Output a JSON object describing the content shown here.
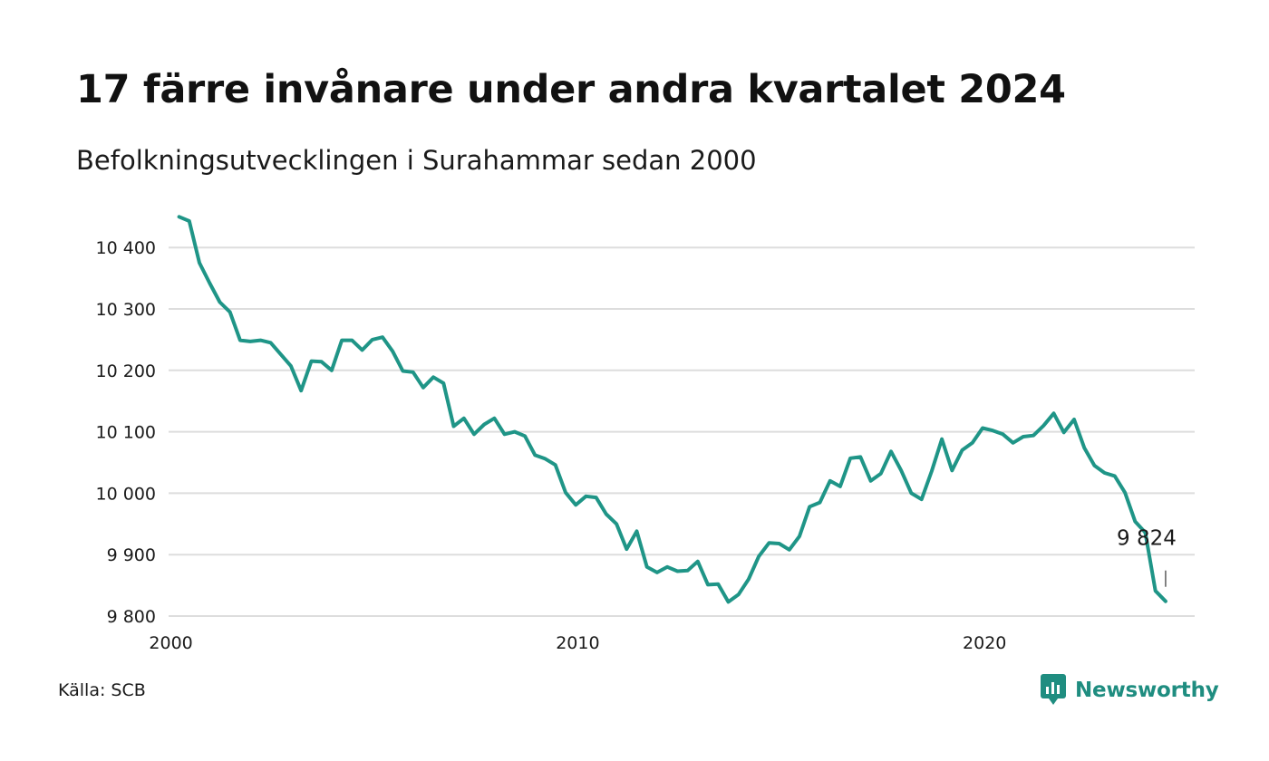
{
  "title": "17 färre invånare under andra kvartalet 2024",
  "subtitle": "Befolkningsutvecklingen i Surahammar sedan 2000",
  "source": "Källa: SCB",
  "brand": "Newsworthy",
  "colors": {
    "line": "#1f9587",
    "grid": "#dddddd",
    "brand": "#1f8d80"
  },
  "chart_data": {
    "type": "line",
    "x_start": "2000 Q1",
    "x_ticks": [
      "2000",
      "2010",
      "2020"
    ],
    "y_ticks": [
      "9 800",
      "9 900",
      "10 000",
      "10 100",
      "10 200",
      "10 300",
      "10 400"
    ],
    "ylim": [
      9800,
      10450
    ],
    "grid": "horizontal",
    "end_label": "9 824",
    "series": [
      {
        "values": [
          10450,
          10443,
          10375,
          10342,
          10311,
          10295,
          10249,
          10247,
          10249,
          10245,
          10226,
          10207,
          10167,
          10215,
          10214,
          10200,
          10249,
          10249,
          10233,
          10250,
          10254,
          10231,
          10199,
          10197,
          10172,
          10189,
          10179,
          10109,
          10122,
          10096,
          10112,
          10122,
          10096,
          10100,
          10093,
          10062,
          10056,
          10046,
          10001,
          9981,
          9995,
          9993,
          9966,
          9950,
          9909,
          9938,
          9880,
          9871,
          9880,
          9873,
          9874,
          9889,
          9851,
          9852,
          9823,
          9835,
          9860,
          9897,
          9919,
          9918,
          9908,
          9930,
          9978,
          9985,
          10020,
          10011,
          10057,
          10059,
          10020,
          10032,
          10068,
          10037,
          10000,
          9990,
          10036,
          10088,
          10037,
          10070,
          10082,
          10106,
          10102,
          10096,
          10082,
          10092,
          10094,
          10110,
          10130,
          10099,
          10120,
          10074,
          10045,
          10033,
          10028,
          10001,
          9954,
          9936,
          9841,
          9824
        ]
      }
    ]
  }
}
